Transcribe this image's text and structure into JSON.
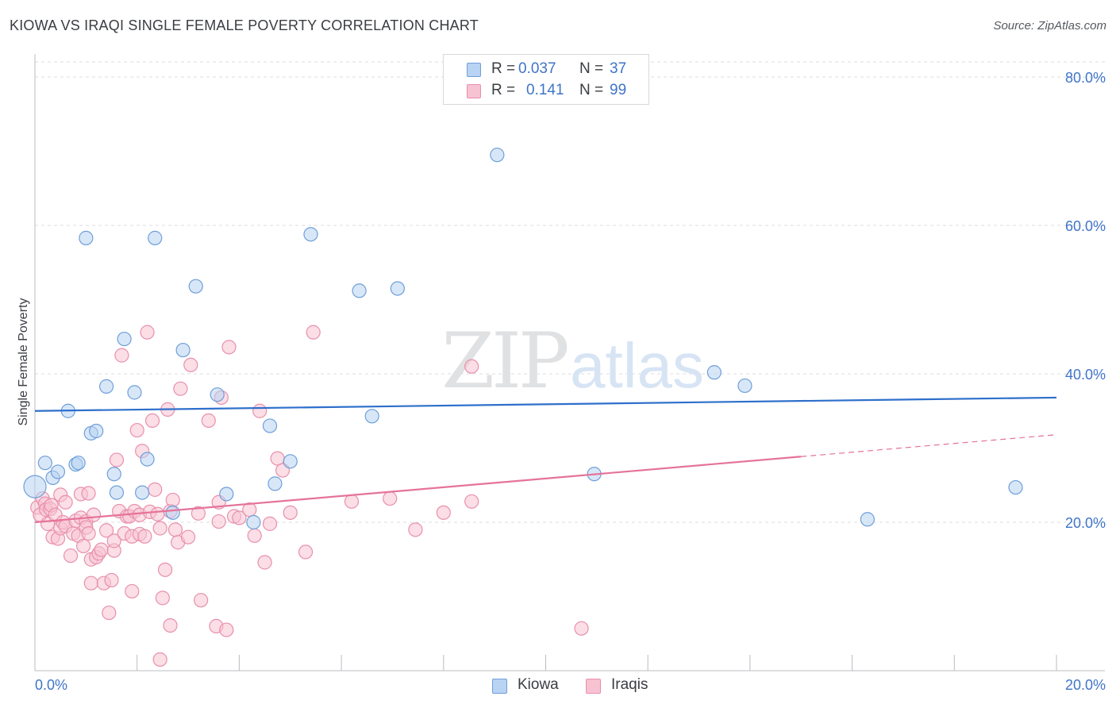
{
  "header": {
    "title": "KIOWA VS IRAQI SINGLE FEMALE POVERTY CORRELATION CHART",
    "source": "Source: ZipAtlas.com"
  },
  "watermark": {
    "zip": "ZIP",
    "atlas": "atlas"
  },
  "colors": {
    "kiowa_fill": "#b8d3f3",
    "kiowa_stroke": "#6f9fd9",
    "kiowa_line": "#2e6fcb",
    "iraqis_fill": "#f7c2d2",
    "iraqis_stroke": "#e890ad",
    "iraqis_line": "#e5739a",
    "tick": "#3f74c9"
  },
  "legend": {
    "rows": [
      {
        "r_label": "R =",
        "r_value": "0.037",
        "n_label": "N =",
        "n_value": "37"
      },
      {
        "r_label": "R =",
        "r_value": "0.141",
        "n_label": "N =",
        "n_value": "99"
      }
    ]
  },
  "bottom_legend": {
    "kiowa": "Kiowa",
    "iraqis": "Iraqis"
  },
  "chart_data": {
    "type": "scatter",
    "title": "KIOWA VS IRAQI SINGLE FEMALE POVERTY CORRELATION CHART",
    "xlabel": "",
    "ylabel": "Single Female Poverty",
    "xlim": [
      0,
      20
    ],
    "ylim": [
      0,
      80
    ],
    "x_tick_labels": [
      "0.0%",
      "20.0%"
    ],
    "y_ticks": [
      20,
      40,
      60,
      80
    ],
    "y_tick_labels": [
      "20.0%",
      "40.0%",
      "60.0%",
      "80.0%"
    ],
    "series": [
      {
        "name": "Kiowa",
        "r": 0.037,
        "n": 37,
        "trend": {
          "x": [
            0,
            20
          ],
          "y": [
            35.0,
            36.8
          ],
          "dashed_from": null
        },
        "points": [
          [
            0.0,
            24.8
          ],
          [
            0.2,
            28.0
          ],
          [
            0.35,
            26.0
          ],
          [
            0.45,
            26.8
          ],
          [
            0.65,
            35.0
          ],
          [
            0.8,
            27.8
          ],
          [
            0.85,
            28.0
          ],
          [
            1.0,
            58.3
          ],
          [
            1.1,
            32.0
          ],
          [
            1.2,
            32.3
          ],
          [
            1.4,
            38.3
          ],
          [
            1.55,
            26.5
          ],
          [
            1.6,
            24.0
          ],
          [
            1.75,
            44.7
          ],
          [
            1.95,
            37.5
          ],
          [
            2.1,
            24.0
          ],
          [
            2.2,
            28.5
          ],
          [
            2.35,
            58.3
          ],
          [
            2.7,
            21.3
          ],
          [
            2.9,
            43.2
          ],
          [
            3.15,
            51.8
          ],
          [
            3.57,
            37.2
          ],
          [
            3.75,
            23.8
          ],
          [
            4.28,
            20.0
          ],
          [
            4.6,
            33.0
          ],
          [
            4.7,
            25.2
          ],
          [
            5.0,
            28.2
          ],
          [
            5.4,
            58.8
          ],
          [
            6.35,
            51.2
          ],
          [
            6.6,
            34.3
          ],
          [
            7.1,
            51.5
          ],
          [
            9.05,
            69.5
          ],
          [
            10.95,
            26.5
          ],
          [
            13.3,
            40.2
          ],
          [
            13.9,
            38.4
          ],
          [
            16.3,
            20.4
          ],
          [
            19.2,
            24.7
          ]
        ]
      },
      {
        "name": "Iraqis",
        "r": 0.141,
        "n": 99,
        "trend": {
          "x": [
            0,
            20
          ],
          "y": [
            20.0,
            31.8
          ],
          "dashed_from": 15.0
        },
        "points": [
          [
            0.05,
            22.0
          ],
          [
            0.1,
            21.0
          ],
          [
            0.15,
            23.2
          ],
          [
            0.2,
            22.5
          ],
          [
            0.22,
            21.7
          ],
          [
            0.25,
            19.8
          ],
          [
            0.3,
            21.8
          ],
          [
            0.32,
            22.3
          ],
          [
            0.35,
            18.0
          ],
          [
            0.4,
            21.0
          ],
          [
            0.45,
            17.8
          ],
          [
            0.5,
            23.7
          ],
          [
            0.5,
            19.2
          ],
          [
            0.55,
            20.0
          ],
          [
            0.6,
            22.7
          ],
          [
            0.6,
            19.5
          ],
          [
            0.7,
            15.5
          ],
          [
            0.75,
            18.5
          ],
          [
            0.8,
            20.2
          ],
          [
            0.85,
            18.2
          ],
          [
            0.9,
            20.6
          ],
          [
            0.9,
            23.8
          ],
          [
            0.95,
            16.8
          ],
          [
            1.0,
            20.1
          ],
          [
            1.0,
            19.3
          ],
          [
            1.05,
            18.5
          ],
          [
            1.05,
            23.9
          ],
          [
            1.1,
            11.8
          ],
          [
            1.1,
            15.0
          ],
          [
            1.15,
            21.0
          ],
          [
            1.2,
            15.3
          ],
          [
            1.25,
            15.8
          ],
          [
            1.3,
            16.3
          ],
          [
            1.35,
            11.8
          ],
          [
            1.4,
            18.9
          ],
          [
            1.45,
            7.8
          ],
          [
            1.5,
            12.2
          ],
          [
            1.55,
            16.2
          ],
          [
            1.55,
            17.5
          ],
          [
            1.6,
            28.4
          ],
          [
            1.65,
            21.5
          ],
          [
            1.7,
            42.5
          ],
          [
            1.75,
            18.5
          ],
          [
            1.8,
            20.8
          ],
          [
            1.85,
            20.8
          ],
          [
            1.9,
            18.1
          ],
          [
            1.9,
            10.7
          ],
          [
            1.95,
            21.5
          ],
          [
            2.0,
            32.4
          ],
          [
            2.05,
            18.4
          ],
          [
            2.05,
            21.0
          ],
          [
            2.1,
            29.6
          ],
          [
            2.15,
            18.1
          ],
          [
            2.2,
            45.6
          ],
          [
            2.25,
            21.4
          ],
          [
            2.3,
            33.7
          ],
          [
            2.35,
            24.4
          ],
          [
            2.4,
            21.1
          ],
          [
            2.45,
            19.2
          ],
          [
            2.5,
            9.8
          ],
          [
            2.55,
            13.6
          ],
          [
            2.6,
            35.2
          ],
          [
            2.65,
            6.1
          ],
          [
            2.65,
            21.5
          ],
          [
            2.7,
            23.0
          ],
          [
            2.75,
            19.0
          ],
          [
            2.8,
            17.3
          ],
          [
            2.85,
            38.0
          ],
          [
            3.0,
            18.0
          ],
          [
            3.05,
            41.2
          ],
          [
            3.2,
            21.2
          ],
          [
            3.25,
            9.5
          ],
          [
            3.4,
            33.7
          ],
          [
            3.55,
            6.0
          ],
          [
            3.6,
            20.1
          ],
          [
            3.6,
            22.7
          ],
          [
            3.65,
            36.8
          ],
          [
            3.75,
            5.5
          ],
          [
            3.8,
            43.6
          ],
          [
            3.9,
            20.8
          ],
          [
            4.0,
            20.6
          ],
          [
            4.2,
            21.7
          ],
          [
            4.3,
            18.2
          ],
          [
            4.4,
            35.0
          ],
          [
            4.5,
            14.6
          ],
          [
            4.6,
            19.8
          ],
          [
            4.75,
            28.6
          ],
          [
            4.85,
            27.0
          ],
          [
            5.0,
            21.3
          ],
          [
            5.3,
            16.0
          ],
          [
            5.45,
            45.6
          ],
          [
            6.2,
            22.8
          ],
          [
            6.95,
            23.2
          ],
          [
            7.45,
            19.0
          ],
          [
            8.0,
            21.3
          ],
          [
            8.55,
            22.8
          ],
          [
            8.55,
            41.0
          ],
          [
            10.7,
            5.7
          ],
          [
            2.45,
            1.5
          ]
        ]
      }
    ]
  }
}
